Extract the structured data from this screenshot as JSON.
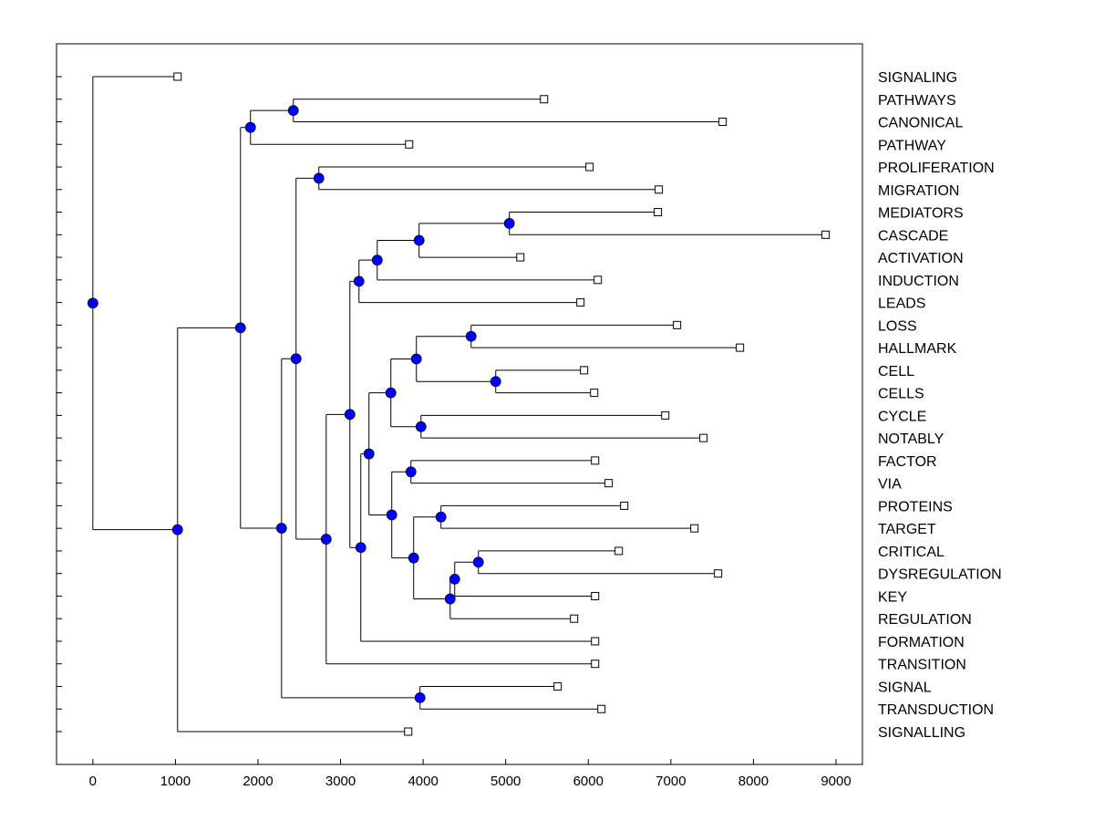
{
  "chart_data": {
    "type": "dendrogram",
    "title": "",
    "xlabel": "",
    "ylabel": "",
    "xlim": [
      -440,
      9320
    ],
    "xticks": [
      0,
      1000,
      2000,
      3000,
      4000,
      5000,
      6000,
      7000,
      8000,
      9000
    ],
    "xtick_labels": [
      "0",
      "1000",
      "2000",
      "3000",
      "4000",
      "5000",
      "6000",
      "7000",
      "8000",
      "9000"
    ],
    "colors": {
      "node": "#0000ff",
      "leaf": "#ffffff",
      "line": "#000000"
    },
    "leaves": [
      "SIGNALING",
      "PATHWAYS",
      "CANONICAL",
      "PATHWAY",
      "PROLIFERATION",
      "MIGRATION",
      "MEDIATORS",
      "CASCADE",
      "ACTIVATION",
      "INDUCTION",
      "LEADS",
      "LOSS",
      "HALLMARK",
      "CELL",
      "CELLS",
      "CYCLE",
      "NOTABLY",
      "FACTOR",
      "VIA",
      "PROTEINS",
      "TARGET",
      "CRITICAL",
      "DYSREGULATION",
      "KEY",
      "REGULATION",
      "FORMATION",
      "TRANSITION",
      "SIGNAL",
      "TRANSDUCTION",
      "SIGNALLING"
    ],
    "tree": {
      "x": 0,
      "children": [
        {
          "leaf": 0,
          "x": 1026
        },
        {
          "x": 1026,
          "children": [
            {
              "x": 1788,
              "children": [
                {
                  "x": 1909,
                  "children": [
                    {
                      "x": 2428,
                      "children": [
                        {
                          "leaf": 1,
                          "x": 5464
                        },
                        {
                          "leaf": 2,
                          "x": 7627
                        }
                      ]
                    },
                    {
                      "leaf": 3,
                      "x": 3830
                    }
                  ]
                },
                {
                  "x": 2285,
                  "children": [
                    {
                      "x": 2461,
                      "children": [
                        {
                          "x": 2737,
                          "children": [
                            {
                              "leaf": 4,
                              "x": 6015
                            },
                            {
                              "leaf": 5,
                              "x": 6854
                            }
                          ]
                        },
                        {
                          "x": 2826,
                          "children": [
                            {
                              "x": 3113,
                              "children": [
                                {
                                  "x": 3223,
                                  "children": [
                                    {
                                      "x": 3444,
                                      "children": [
                                        {
                                          "x": 3951,
                                          "children": [
                                            {
                                              "x": 5044,
                                              "children": [
                                                {
                                                  "leaf": 6,
                                                  "x": 6843
                                                },
                                                {
                                                  "leaf": 7,
                                                  "x": 8874
                                                }
                                              ]
                                            },
                                            {
                                              "leaf": 8,
                                              "x": 5177
                                            }
                                          ]
                                        },
                                        {
                                          "leaf": 9,
                                          "x": 6115
                                        }
                                      ]
                                    },
                                    {
                                      "leaf": 10,
                                      "x": 5905
                                    }
                                  ]
                                },
                                {
                                  "x": 3245,
                                  "children": [
                                    {
                                      "x": 3344,
                                      "children": [
                                        {
                                          "x": 3609,
                                          "children": [
                                            {
                                              "x": 3918,
                                              "children": [
                                                {
                                                  "x": 4581,
                                                  "children": [
                                                    {
                                                      "leaf": 11,
                                                      "x": 7075
                                                    },
                                                    {
                                                      "leaf": 12,
                                                      "x": 7837
                                                    }
                                                  ]
                                                },
                                                {
                                                  "x": 4879,
                                                  "children": [
                                                    {
                                                      "leaf": 13,
                                                      "x": 5949
                                                    },
                                                    {
                                                      "leaf": 14,
                                                      "x": 6071
                                                    }
                                                  ]
                                                }
                                              ]
                                            },
                                            {
                                              "x": 3974,
                                              "children": [
                                                {
                                                  "leaf": 15,
                                                  "x": 6932
                                                },
                                                {
                                                  "leaf": 16,
                                                  "x": 7395
                                                }
                                              ]
                                            }
                                          ]
                                        },
                                        {
                                          "x": 3620,
                                          "children": [
                                            {
                                              "x": 3852,
                                              "children": [
                                                {
                                                  "leaf": 17,
                                                  "x": 6082
                                                },
                                                {
                                                  "leaf": 18,
                                                  "x": 6247
                                                }
                                              ]
                                            },
                                            {
                                              "x": 3885,
                                              "children": [
                                                {
                                                  "x": 4216,
                                                  "children": [
                                                    {
                                                      "leaf": 19,
                                                      "x": 6435
                                                    },
                                                    {
                                                      "leaf": 20,
                                                      "x": 7285
                                                    }
                                                  ]
                                                },
                                                {
                                                  "x": 4327,
                                                  "children": [
                                                    {
                                                      "x": 4382,
                                                      "children": [
                                                        {
                                                          "x": 4669,
                                                          "children": [
                                                            {
                                                              "leaf": 21,
                                                              "x": 6369
                                                            },
                                                            {
                                                              "leaf": 22,
                                                              "x": 7572
                                                            }
                                                          ]
                                                        },
                                                        {
                                                          "leaf": 23,
                                                          "x": 6082
                                                        }
                                                      ]
                                                    },
                                                    {
                                                      "leaf": 24,
                                                      "x": 5828
                                                    }
                                                  ]
                                                }
                                              ]
                                            }
                                          ]
                                        }
                                      ]
                                    },
                                    {
                                      "leaf": 25,
                                      "x": 6082
                                    }
                                  ]
                                }
                              ]
                            },
                            {
                              "leaf": 26,
                              "x": 6082
                            }
                          ]
                        }
                      ]
                    },
                    {
                      "x": 3962,
                      "children": [
                        {
                          "leaf": 27,
                          "x": 5629
                        },
                        {
                          "leaf": 28,
                          "x": 6159
                        }
                      ]
                    }
                  ]
                }
              ]
            },
            {
              "leaf": 29,
              "x": 3819
            }
          ]
        }
      ]
    }
  }
}
